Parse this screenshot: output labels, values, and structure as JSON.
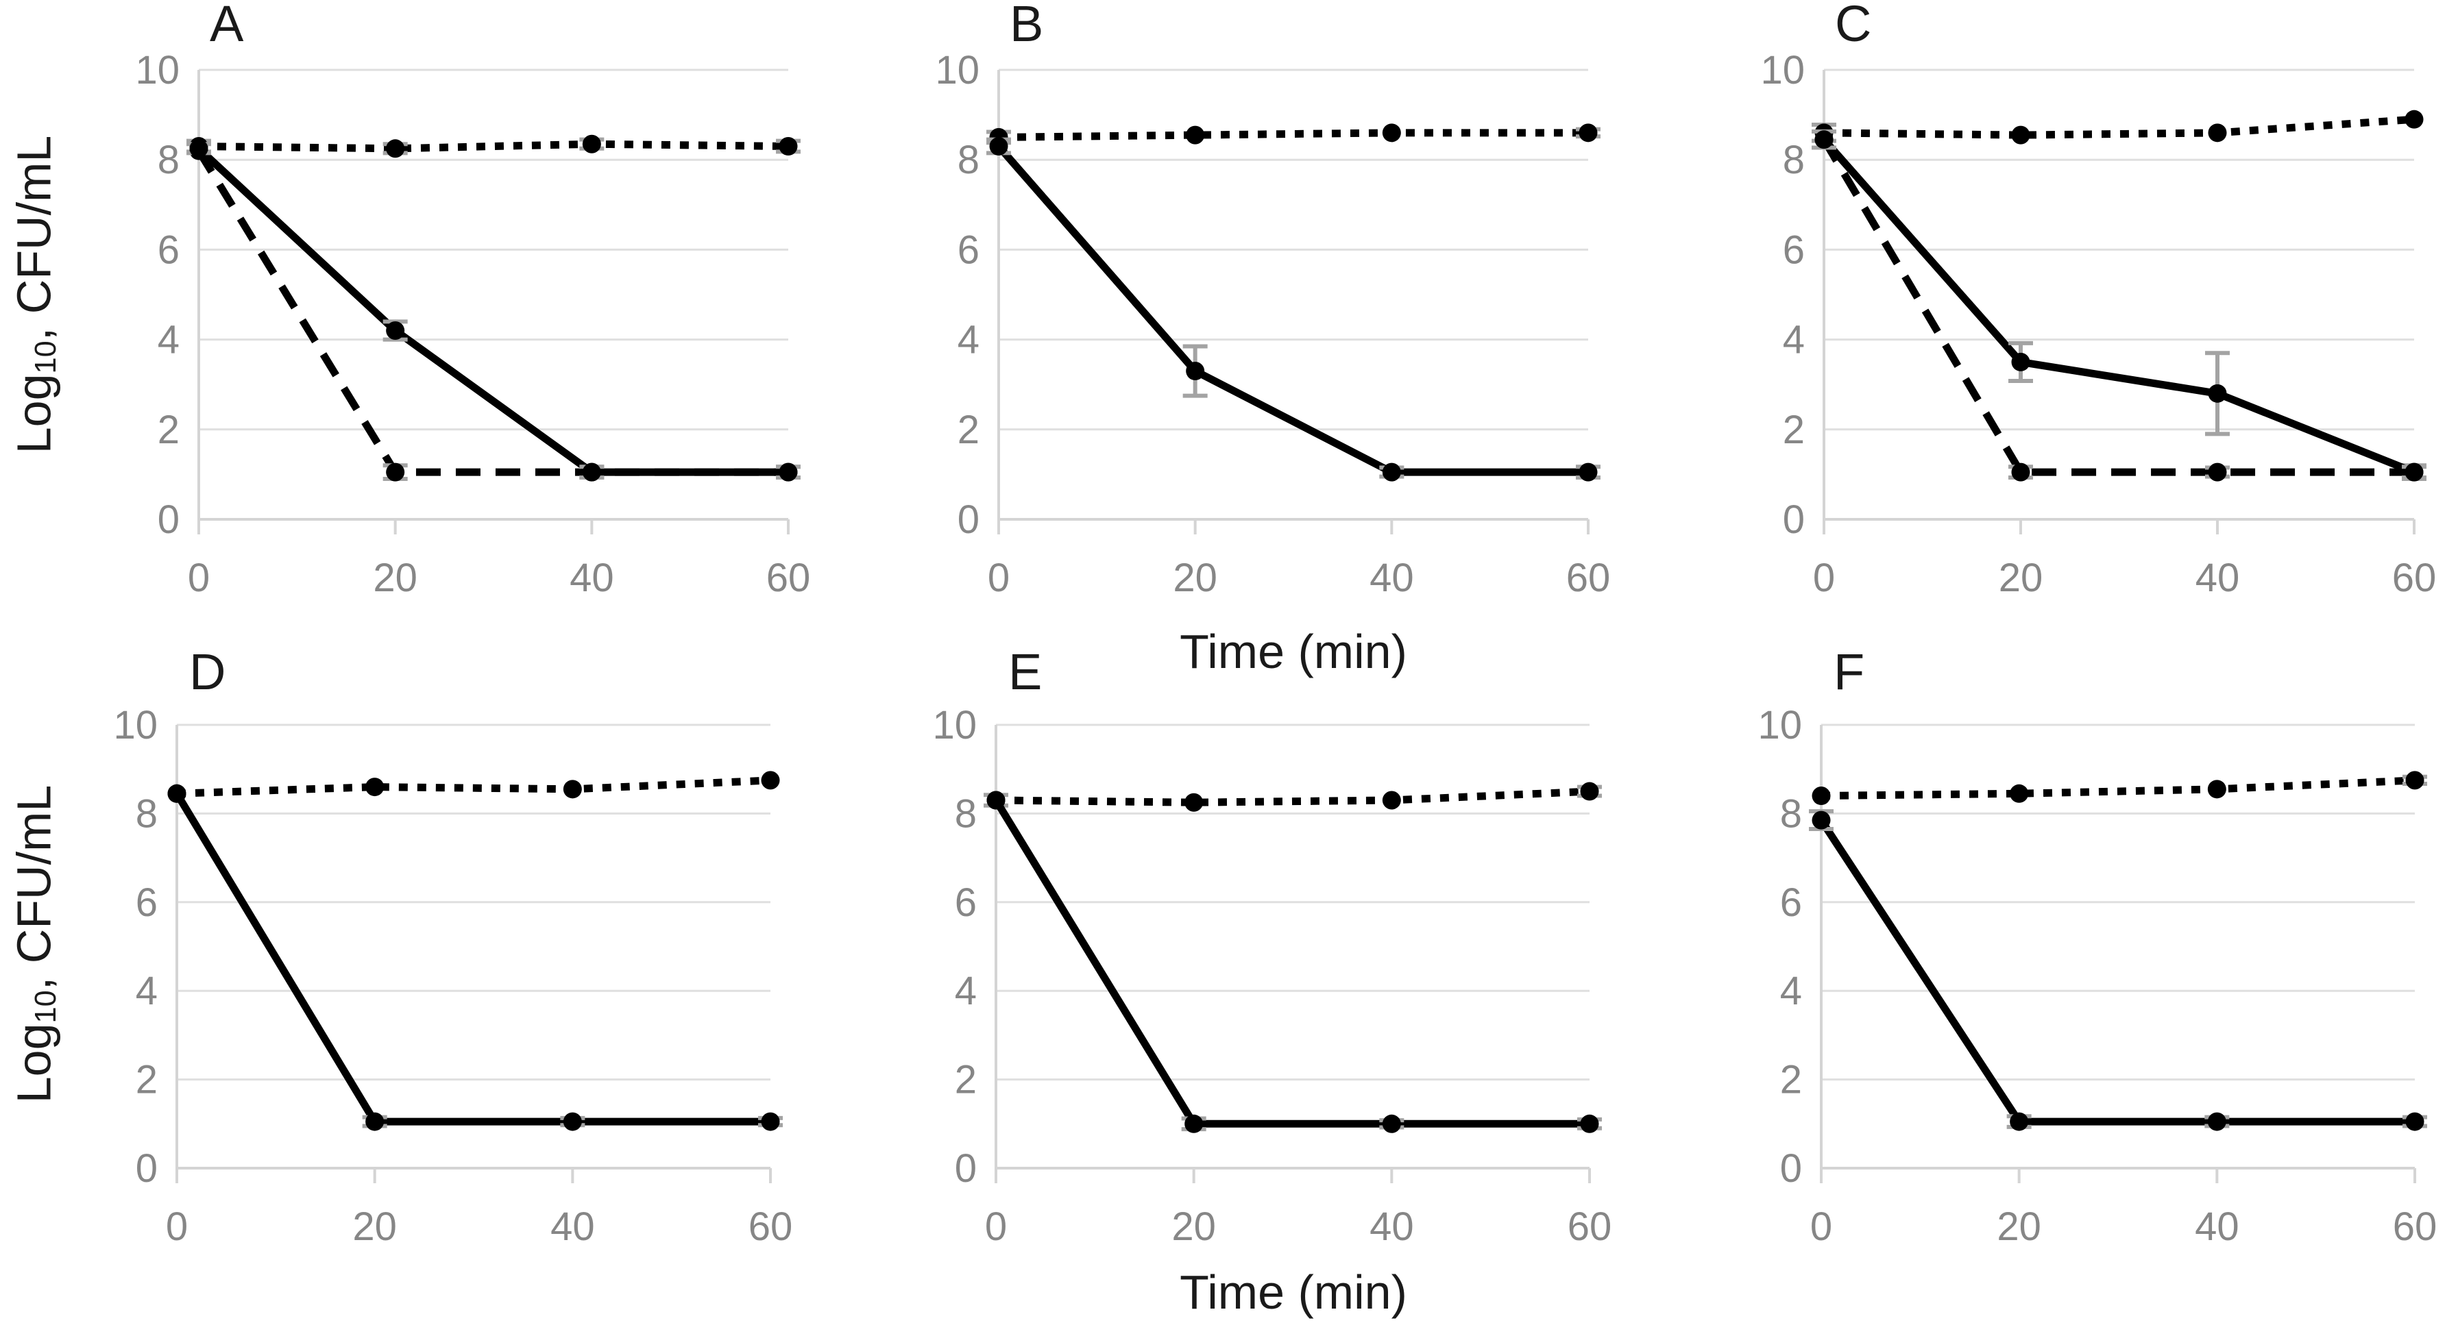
{
  "figure": {
    "x_axis_label": "Time (min)",
    "y_axis_label": {
      "pre": "Log",
      "sub": "10",
      "post": ", CFU/mL"
    },
    "colors": {
      "series": "#000000",
      "grid": "#dfdfdf",
      "axis": "#d4d4d4",
      "tick_label": "#868686",
      "error_bar": "#a3a3a3",
      "text": "#1a1a1a",
      "background": "#ffffff"
    }
  },
  "chart_data": [
    {
      "id": "A",
      "label": "A",
      "type": "line",
      "xlabel": "Time (min)",
      "ylabel": "Log10, CFU/mL",
      "x_ticks": [
        0,
        20,
        40,
        60
      ],
      "y_ticks": [
        0,
        2,
        4,
        6,
        8,
        10
      ],
      "xlim": [
        0,
        60
      ],
      "ylim": [
        0,
        10
      ],
      "grid": "horizontal",
      "legend": "none",
      "series": [
        {
          "name": "dotted",
          "style": "dotted",
          "x": [
            0,
            20,
            40,
            60
          ],
          "values": [
            8.3,
            8.25,
            8.35,
            8.3
          ],
          "err": [
            0.12,
            0.1,
            0.1,
            0.12
          ]
        },
        {
          "name": "dashed",
          "style": "dashed",
          "x": [
            0,
            20,
            40,
            60
          ],
          "values": [
            8.2,
            1.05,
            1.05,
            1.05
          ],
          "err": [
            0,
            0.15,
            0.12,
            0.12
          ]
        },
        {
          "name": "solid",
          "style": "solid",
          "x": [
            0,
            20,
            40,
            60
          ],
          "values": [
            8.25,
            4.2,
            1.05,
            1.05
          ],
          "err": [
            0.1,
            0.2,
            0.12,
            0.12
          ]
        }
      ]
    },
    {
      "id": "B",
      "label": "B",
      "type": "line",
      "xlabel": "Time (min)",
      "ylabel": "Log10, CFU/mL",
      "x_ticks": [
        0,
        20,
        40,
        60
      ],
      "y_ticks": [
        0,
        2,
        4,
        6,
        8,
        10
      ],
      "xlim": [
        0,
        60
      ],
      "ylim": [
        0,
        10
      ],
      "grid": "horizontal",
      "legend": "none",
      "series": [
        {
          "name": "dotted",
          "style": "dotted",
          "x": [
            0,
            20,
            40,
            60
          ],
          "values": [
            8.5,
            8.55,
            8.6,
            8.6
          ],
          "err": [
            0.12,
            0,
            0,
            0.08
          ]
        },
        {
          "name": "solid",
          "style": "solid",
          "x": [
            0,
            20,
            40,
            60
          ],
          "values": [
            8.3,
            3.3,
            1.05,
            1.05
          ],
          "err": [
            0.15,
            0.55,
            0.1,
            0.12
          ]
        }
      ]
    },
    {
      "id": "C",
      "label": "C",
      "type": "line",
      "xlabel": "Time (min)",
      "ylabel": "Log10, CFU/mL",
      "x_ticks": [
        0,
        20,
        40,
        60
      ],
      "y_ticks": [
        0,
        2,
        4,
        6,
        8,
        10
      ],
      "xlim": [
        0,
        60
      ],
      "ylim": [
        0,
        10
      ],
      "grid": "horizontal",
      "legend": "none",
      "series": [
        {
          "name": "dotted",
          "style": "dotted",
          "x": [
            0,
            20,
            40,
            60
          ],
          "values": [
            8.6,
            8.55,
            8.6,
            8.9
          ],
          "err": [
            0.18,
            0,
            0,
            0
          ]
        },
        {
          "name": "dashed",
          "style": "dashed",
          "x": [
            0,
            20,
            40,
            60
          ],
          "values": [
            8.45,
            1.05,
            1.05,
            1.05
          ],
          "err": [
            0,
            0.12,
            0.1,
            0.15
          ]
        },
        {
          "name": "solid",
          "style": "solid",
          "x": [
            0,
            20,
            40,
            60
          ],
          "values": [
            8.45,
            3.5,
            2.8,
            1.05
          ],
          "err": [
            0.18,
            0.42,
            0.9,
            0.12
          ]
        }
      ]
    },
    {
      "id": "D",
      "label": "D",
      "type": "line",
      "xlabel": "Time (min)",
      "ylabel": "Log10, CFU/mL",
      "x_ticks": [
        0,
        20,
        40,
        60
      ],
      "y_ticks": [
        0,
        2,
        4,
        6,
        8,
        10
      ],
      "xlim": [
        0,
        60
      ],
      "ylim": [
        0,
        10
      ],
      "grid": "horizontal",
      "legend": "none",
      "series": [
        {
          "name": "dotted",
          "style": "dotted",
          "x": [
            0,
            20,
            40,
            60
          ],
          "values": [
            8.45,
            8.6,
            8.55,
            8.75
          ],
          "err": [
            0,
            0,
            0,
            0
          ]
        },
        {
          "name": "solid",
          "style": "solid",
          "x": [
            0,
            20,
            40,
            60
          ],
          "values": [
            8.45,
            1.05,
            1.05,
            1.05
          ],
          "err": [
            0,
            0.1,
            0.08,
            0.08
          ]
        }
      ]
    },
    {
      "id": "E",
      "label": "E",
      "type": "line",
      "xlabel": "Time (min)",
      "ylabel": "Log10, CFU/mL",
      "x_ticks": [
        0,
        20,
        40,
        60
      ],
      "y_ticks": [
        0,
        2,
        4,
        6,
        8,
        10
      ],
      "xlim": [
        0,
        60
      ],
      "ylim": [
        0,
        10
      ],
      "grid": "horizontal",
      "legend": "none",
      "series": [
        {
          "name": "dotted",
          "style": "dotted",
          "x": [
            0,
            20,
            40,
            60
          ],
          "values": [
            8.3,
            8.25,
            8.3,
            8.5
          ],
          "err": [
            0.12,
            0,
            0,
            0.1
          ]
        },
        {
          "name": "solid",
          "style": "solid",
          "x": [
            0,
            20,
            40,
            60
          ],
          "values": [
            8.3,
            1.0,
            1.0,
            1.0
          ],
          "err": [
            0,
            0.12,
            0.08,
            0.1
          ]
        }
      ]
    },
    {
      "id": "F",
      "label": "F",
      "type": "line",
      "xlabel": "Time (min)",
      "ylabel": "Log10, CFU/mL",
      "x_ticks": [
        0,
        20,
        40,
        60
      ],
      "y_ticks": [
        0,
        2,
        4,
        6,
        8,
        10
      ],
      "xlim": [
        0,
        60
      ],
      "ylim": [
        0,
        10
      ],
      "grid": "horizontal",
      "legend": "none",
      "series": [
        {
          "name": "dotted",
          "style": "dotted",
          "x": [
            0,
            20,
            40,
            60
          ],
          "values": [
            8.4,
            8.45,
            8.55,
            8.75
          ],
          "err": [
            0,
            0,
            0,
            0.08
          ]
        },
        {
          "name": "solid",
          "style": "solid",
          "x": [
            0,
            20,
            40,
            60
          ],
          "values": [
            7.85,
            1.05,
            1.05,
            1.05
          ],
          "err": [
            0.2,
            0.12,
            0.1,
            0.1
          ]
        }
      ]
    }
  ]
}
